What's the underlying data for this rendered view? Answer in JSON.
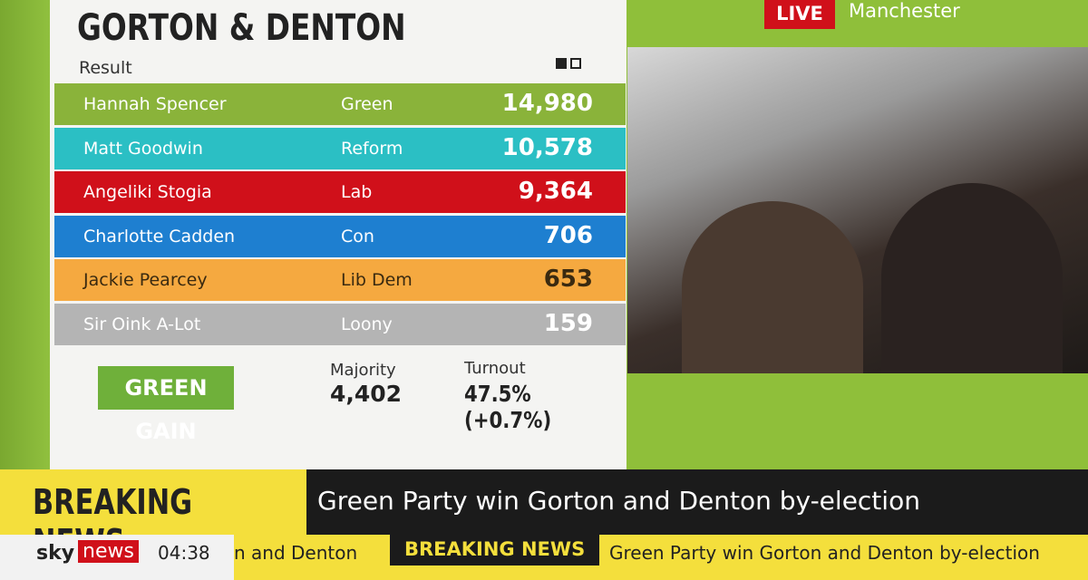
{
  "header": {
    "title": "GORTON & DENTON",
    "subtitle": "Result"
  },
  "results": {
    "rows": [
      {
        "name": "Hannah Spencer",
        "party": "Green",
        "votes": "14,980",
        "color": "#8ab33a"
      },
      {
        "name": "Matt Goodwin",
        "party": "Reform",
        "votes": "10,578",
        "color": "#2bbfc4"
      },
      {
        "name": "Angeliki Stogia",
        "party": "Lab",
        "votes": "9,364",
        "color": "#d0101a"
      },
      {
        "name": "Charlotte Cadden",
        "party": "Con",
        "votes": "706",
        "color": "#1e7fd0"
      },
      {
        "name": "Jackie Pearcey",
        "party": "Lib Dem",
        "votes": "653",
        "color": "#f5a940"
      },
      {
        "name": "Sir Oink A-Lot",
        "party": "Loony",
        "votes": "159",
        "color": "#b4b4b4"
      }
    ]
  },
  "summary": {
    "badge": "GREEN GAIN",
    "majority_label": "Majority",
    "majority": "4,402",
    "turnout_label": "Turnout",
    "turnout": "47.5% (+0.7%)"
  },
  "live": {
    "badge": "LIVE",
    "location": "Manchester"
  },
  "breaking": {
    "label": "BREAKING NEWS",
    "headline": "Green Party win Gorton and Denton by-election"
  },
  "ticker": {
    "logo_sky": "sky",
    "logo_news": "news",
    "time": "04:38",
    "items": [
      "n and Denton",
      "BREAKING NEWS",
      "Green Party win Gorton and Denton by-election"
    ]
  }
}
